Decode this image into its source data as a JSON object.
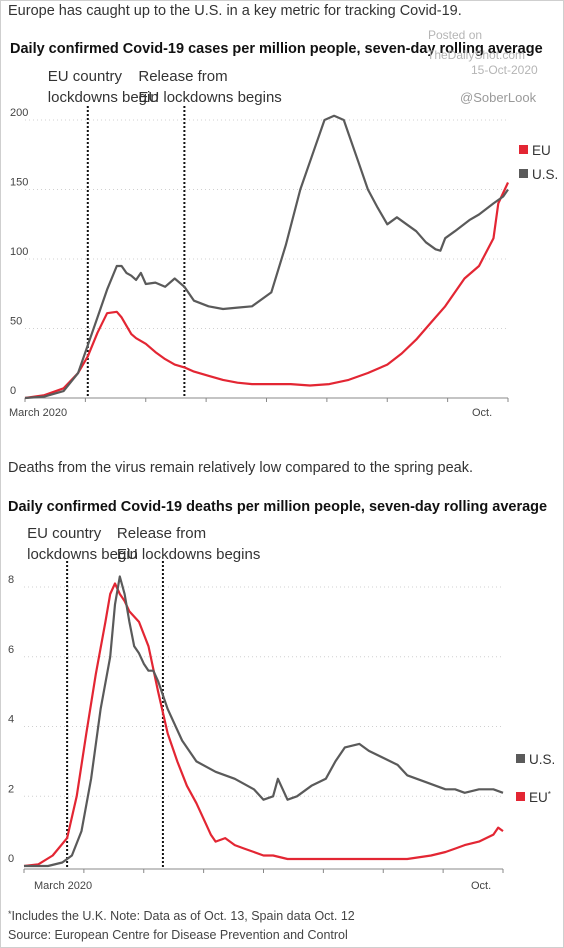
{
  "watermark": {
    "posted_label": "Posted on",
    "site": "TheDailyShot.com",
    "date": "15-Oct-2020",
    "handle": "@SoberLook"
  },
  "intro1": "Europe has caught up to the U.S. in a key metric for tracking Covid-19.",
  "intro2": "Deaths from the virus remain relatively low compared to the spring peak.",
  "footer": {
    "note_marker": "*",
    "note": "Includes the U.K. Note: Data as of Oct. 13, Spain data Oct. 12",
    "source": "Source: European Centre for Disease Prevention and Control"
  },
  "colors": {
    "eu": "#e32633",
    "us": "#5a5a5a",
    "grid": "#d0d0d0",
    "marker": "#111111"
  },
  "chart_data": [
    {
      "type": "line",
      "title": "Daily confirmed Covid-19 cases per million people, seven-day rolling average",
      "xlabel": "",
      "ylabel": "",
      "x_labels": [
        "March 2020",
        "Oct."
      ],
      "x_range": [
        0,
        100
      ],
      "ylim": [
        0,
        200
      ],
      "yticks": [
        0,
        50,
        100,
        150,
        200
      ],
      "grid": "horizontal",
      "legend_position": "right",
      "annotations": [
        {
          "x": 13,
          "lines": [
            "EU country",
            "lockdowns begin"
          ]
        },
        {
          "x": 33,
          "lines": [
            "Release from",
            "EU lockdowns begins"
          ]
        }
      ],
      "series": [
        {
          "name": "EU",
          "legend": "EU",
          "color": "#e32633",
          "x": [
            0,
            4,
            8,
            11,
            13,
            15,
            17,
            19,
            20,
            21,
            22,
            23,
            25,
            27,
            29,
            31,
            33,
            35,
            38,
            41,
            44,
            47,
            51,
            55,
            59,
            63,
            67,
            71,
            75,
            78,
            81,
            84,
            87,
            91,
            94,
            97,
            98,
            100
          ],
          "y": [
            0,
            2,
            7,
            18,
            30,
            47,
            61,
            62,
            58,
            52,
            46,
            43,
            39,
            33,
            28,
            24,
            22,
            19,
            16,
            13,
            11,
            10,
            10,
            10,
            9,
            10,
            13,
            18,
            24,
            32,
            42,
            54,
            66,
            86,
            95,
            115,
            140,
            155
          ]
        },
        {
          "name": "U.S.",
          "legend": "U.S.",
          "color": "#5a5a5a",
          "x": [
            0,
            4,
            8,
            11,
            13,
            15,
            17,
            19,
            20,
            21,
            22,
            23,
            24,
            25,
            27,
            29,
            31,
            33,
            35,
            38,
            41,
            44,
            47,
            51,
            54,
            57,
            60,
            62,
            64,
            66,
            67,
            69,
            71,
            73,
            75,
            77,
            79,
            81,
            83,
            85,
            86,
            87,
            89,
            92,
            94,
            97,
            99,
            100
          ],
          "y": [
            0,
            1,
            5,
            18,
            38,
            58,
            78,
            95,
            95,
            90,
            88,
            85,
            90,
            82,
            83,
            80,
            86,
            80,
            70,
            66,
            64,
            65,
            66,
            76,
            110,
            150,
            180,
            200,
            203,
            200,
            190,
            170,
            150,
            137,
            125,
            130,
            125,
            120,
            112,
            107,
            106,
            115,
            120,
            128,
            132,
            140,
            145,
            150
          ]
        }
      ]
    },
    {
      "type": "line",
      "title": "Daily confirmed Covid-19 deaths per million people, seven-day rolling average",
      "xlabel": "",
      "ylabel": "",
      "x_labels": [
        "March 2020",
        "Oct."
      ],
      "x_range": [
        0,
        100
      ],
      "ylim": [
        0,
        8
      ],
      "yticks": [
        0,
        2,
        4,
        6,
        8
      ],
      "grid": "horizontal",
      "legend_position": "right",
      "annotations": [
        {
          "x": 9,
          "lines": [
            "EU country",
            "lockdowns begin"
          ]
        },
        {
          "x": 29,
          "lines": [
            "Release from",
            "EU lockdowns begins"
          ]
        }
      ],
      "series": [
        {
          "name": "EU",
          "legend": "EU*",
          "color": "#e32633",
          "x": [
            0,
            3,
            6,
            9,
            11,
            13,
            15,
            17,
            18,
            19,
            20,
            21,
            22,
            24,
            26,
            28,
            30,
            32,
            34,
            36,
            38,
            39,
            40,
            42,
            44,
            46,
            48,
            50,
            52,
            55,
            60,
            65,
            70,
            75,
            80,
            85,
            88,
            90,
            92,
            95,
            98,
            99,
            100
          ],
          "y": [
            0,
            0.05,
            0.3,
            0.8,
            2,
            3.8,
            5.5,
            7,
            7.8,
            8.1,
            7.8,
            7.6,
            7.3,
            7,
            6.3,
            5,
            3.8,
            3,
            2.3,
            1.8,
            1.2,
            0.9,
            0.7,
            0.8,
            0.6,
            0.5,
            0.4,
            0.3,
            0.3,
            0.2,
            0.2,
            0.2,
            0.2,
            0.2,
            0.2,
            0.3,
            0.4,
            0.5,
            0.6,
            0.7,
            0.9,
            1.1,
            1
          ]
        },
        {
          "name": "U.S.",
          "legend": "U.S.",
          "color": "#5a5a5a",
          "x": [
            0,
            5,
            8,
            10,
            12,
            14,
            16,
            18,
            19,
            20,
            21,
            22,
            23,
            24,
            25,
            26,
            27,
            28,
            30,
            33,
            36,
            40,
            44,
            48,
            50,
            52,
            53,
            55,
            57,
            60,
            63,
            65,
            67,
            70,
            72,
            75,
            78,
            80,
            82,
            84,
            86,
            88,
            90,
            92,
            95,
            98,
            100
          ],
          "y": [
            0,
            0,
            0.1,
            0.3,
            1,
            2.5,
            4.5,
            6,
            7.5,
            8.3,
            7.8,
            7,
            6.3,
            6.1,
            5.8,
            5.6,
            5.6,
            5.3,
            4.5,
            3.6,
            3,
            2.7,
            2.5,
            2.2,
            1.9,
            2,
            2.5,
            1.9,
            2,
            2.3,
            2.5,
            3,
            3.4,
            3.5,
            3.3,
            3.1,
            2.9,
            2.6,
            2.5,
            2.4,
            2.3,
            2.2,
            2.2,
            2.1,
            2.2,
            2.2,
            2.1
          ]
        }
      ]
    }
  ]
}
